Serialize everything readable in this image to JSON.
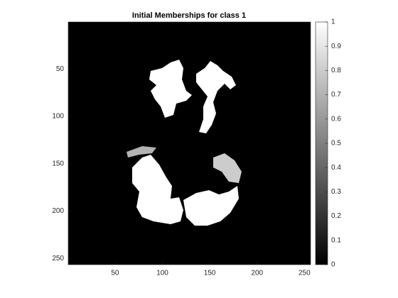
{
  "chart_data": {
    "type": "image",
    "title": "Initial Memberships for class 1",
    "xlim": [
      0.5,
      256.5
    ],
    "ylim": [
      0.5,
      256.5
    ],
    "y_reversed": true,
    "xticks": [
      50,
      100,
      150,
      200,
      250
    ],
    "yticks": [
      50,
      100,
      150,
      200,
      250
    ],
    "colormap": "gray",
    "colorbar": {
      "clim": [
        0,
        1
      ],
      "ticks": [
        0,
        0.1,
        0.2,
        0.3,
        0.4,
        0.5,
        0.6,
        0.7,
        0.8,
        0.9,
        1
      ]
    }
  }
}
